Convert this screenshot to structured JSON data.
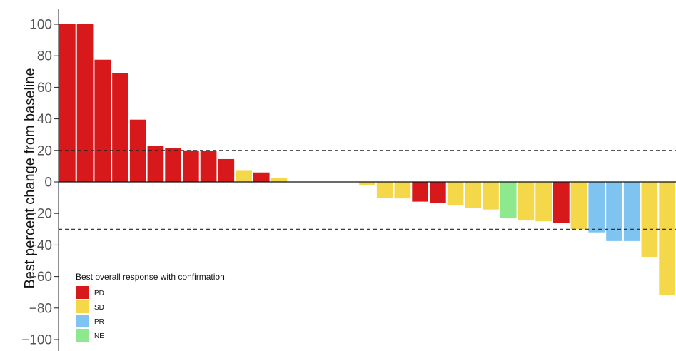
{
  "chart_data": {
    "type": "bar",
    "title": "",
    "xlabel": "",
    "ylabel": "Best percent change from baseline",
    "ylim": [
      -105,
      110
    ],
    "yticks": [
      100,
      80,
      60,
      40,
      20,
      0,
      -20,
      -40,
      -60,
      -80,
      -100
    ],
    "ytick_labels": [
      "100",
      "80",
      "60",
      "40",
      "20",
      "0",
      "−20",
      "−40",
      "−60",
      "−80",
      "−100"
    ],
    "reference_lines": [
      20,
      -30
    ],
    "grid": false,
    "legend_position": "bottom-left",
    "legend": {
      "title": "Best overall response with confirmation",
      "items": [
        {
          "label": "PD",
          "color": "#d7191c"
        },
        {
          "label": "SD",
          "color": "#f5d84a"
        },
        {
          "label": "PR",
          "color": "#7fc4f0"
        },
        {
          "label": "NE",
          "color": "#8ee88e"
        }
      ]
    },
    "bars": [
      {
        "value": 100,
        "response": "PD"
      },
      {
        "value": 100,
        "response": "PD"
      },
      {
        "value": 77.5,
        "response": "PD"
      },
      {
        "value": 69,
        "response": "PD"
      },
      {
        "value": 39.5,
        "response": "PD"
      },
      {
        "value": 23,
        "response": "PD"
      },
      {
        "value": 21.5,
        "response": "PD"
      },
      {
        "value": 20,
        "response": "PD"
      },
      {
        "value": 19.5,
        "response": "PD"
      },
      {
        "value": 14.5,
        "response": "PD"
      },
      {
        "value": 7.5,
        "response": "SD"
      },
      {
        "value": 6,
        "response": "PD"
      },
      {
        "value": 2.5,
        "response": "SD"
      },
      {
        "value": 0,
        "response": "SD"
      },
      {
        "value": 0,
        "response": "SD"
      },
      {
        "value": 0,
        "response": "SD"
      },
      {
        "value": 0,
        "response": "SD"
      },
      {
        "value": -2,
        "response": "SD"
      },
      {
        "value": -10,
        "response": "SD"
      },
      {
        "value": -10.5,
        "response": "SD"
      },
      {
        "value": -12.5,
        "response": "PD"
      },
      {
        "value": -13.5,
        "response": "PD"
      },
      {
        "value": -15,
        "response": "SD"
      },
      {
        "value": -16.5,
        "response": "SD"
      },
      {
        "value": -17.5,
        "response": "SD"
      },
      {
        "value": -23,
        "response": "NE"
      },
      {
        "value": -24.5,
        "response": "SD"
      },
      {
        "value": -25,
        "response": "SD"
      },
      {
        "value": -26,
        "response": "PD"
      },
      {
        "value": -30,
        "response": "SD"
      },
      {
        "value": -32,
        "response": "PR"
      },
      {
        "value": -37.5,
        "response": "PR"
      },
      {
        "value": -37.5,
        "response": "PR"
      },
      {
        "value": -47.5,
        "response": "SD"
      },
      {
        "value": -71.5,
        "response": "SD"
      }
    ]
  }
}
